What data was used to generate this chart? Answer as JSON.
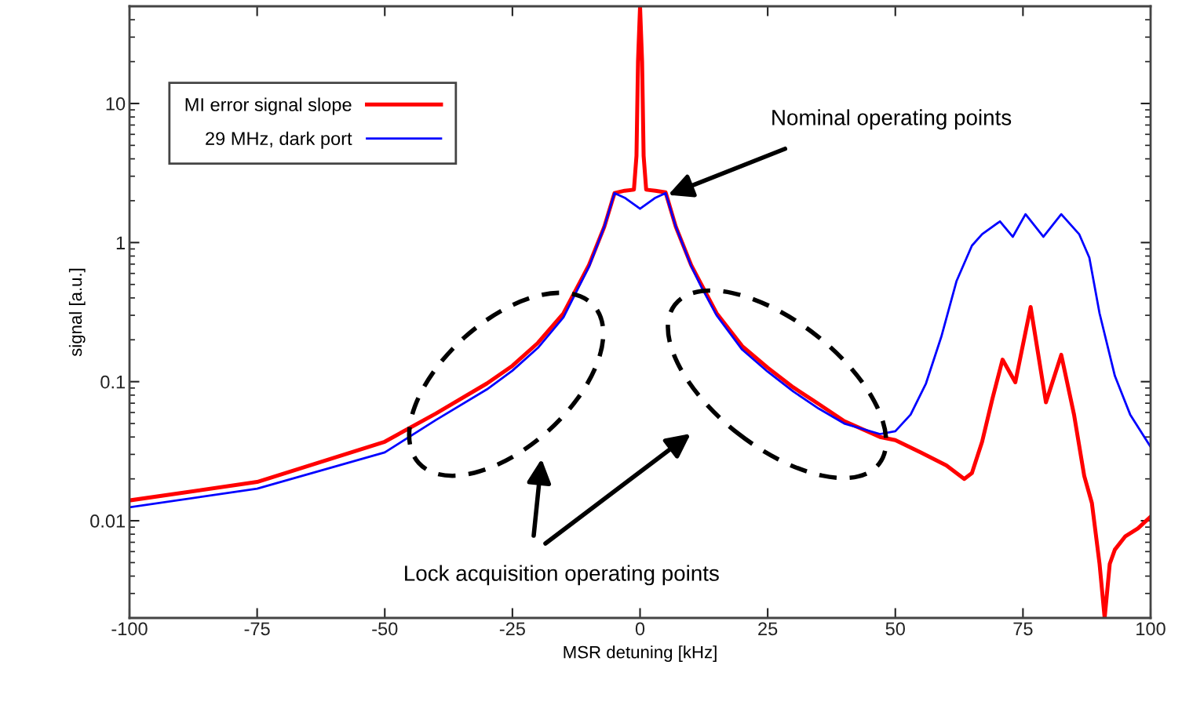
{
  "chart_data": {
    "type": "line",
    "xlabel": "MSR detuning [kHz]",
    "ylabel": "signal [a.u.]",
    "log": "y",
    "xlim": [
      -100,
      100
    ],
    "ylim": [
      0.002,
      50
    ],
    "xticks": [
      -100,
      -75,
      -50,
      -25,
      0,
      25,
      50,
      75,
      100
    ],
    "yticks": [
      0.01,
      0.1,
      1,
      10
    ],
    "grid": false,
    "legend": "top left",
    "marker": "none",
    "line_style": "solid",
    "series": [
      {
        "name": "MI error signal slope",
        "color": "#ff0000",
        "x": [
          -100,
          -75,
          -50,
          -40,
          -30,
          -25,
          -20,
          -15,
          -12,
          -10,
          -7,
          -5,
          -3,
          -1.2,
          -0.7,
          -0.4,
          0,
          0.4,
          0.7,
          1.2,
          3,
          5,
          7,
          10,
          12,
          15,
          20,
          25,
          30,
          35,
          40,
          47,
          50,
          55,
          60,
          63.5,
          65,
          67,
          69,
          71,
          73.5,
          76.5,
          79.5,
          82.5,
          85,
          87,
          88.5,
          90,
          91,
          92,
          93,
          95,
          97.5,
          100
        ],
        "values": [
          0.014,
          0.019,
          0.037,
          0.059,
          0.097,
          0.13,
          0.19,
          0.31,
          0.5,
          0.69,
          1.3,
          2.27,
          2.36,
          2.4,
          4.2,
          20,
          50,
          20,
          4.2,
          2.4,
          2.36,
          2.3,
          1.3,
          0.69,
          0.5,
          0.31,
          0.18,
          0.126,
          0.091,
          0.069,
          0.052,
          0.04,
          0.038,
          0.031,
          0.025,
          0.02,
          0.022,
          0.037,
          0.075,
          0.144,
          0.099,
          0.344,
          0.071,
          0.156,
          0.058,
          0.021,
          0.0134,
          0.0049,
          0.002,
          0.0049,
          0.0062,
          0.0077,
          0.0088,
          0.0107
        ]
      },
      {
        "name": "29 MHz, dark port",
        "color": "#0000ff",
        "x": [
          -100,
          -75,
          -50,
          -40,
          -30,
          -25,
          -20,
          -15,
          -12,
          -10,
          -7,
          -5,
          -3,
          0,
          3,
          5,
          7,
          10,
          12,
          15,
          20,
          25,
          30,
          35,
          40,
          47,
          50,
          53,
          56,
          59,
          62,
          65,
          67,
          70.5,
          73,
          75.5,
          79,
          82.5,
          86,
          88,
          90,
          93,
          96,
          100
        ],
        "values": [
          0.0125,
          0.017,
          0.031,
          0.053,
          0.088,
          0.12,
          0.175,
          0.29,
          0.48,
          0.67,
          1.3,
          2.27,
          2.1,
          1.75,
          2.1,
          2.27,
          1.3,
          0.68,
          0.48,
          0.3,
          0.17,
          0.118,
          0.085,
          0.064,
          0.05,
          0.042,
          0.044,
          0.058,
          0.097,
          0.21,
          0.53,
          0.95,
          1.15,
          1.42,
          1.1,
          1.6,
          1.1,
          1.6,
          1.15,
          0.78,
          0.31,
          0.11,
          0.058,
          0.034
        ]
      }
    ],
    "annotations": [
      {
        "text": "Nominal operating points",
        "x": 5.5,
        "y": 2.2
      },
      "Lock acquisition operating points"
    ]
  }
}
